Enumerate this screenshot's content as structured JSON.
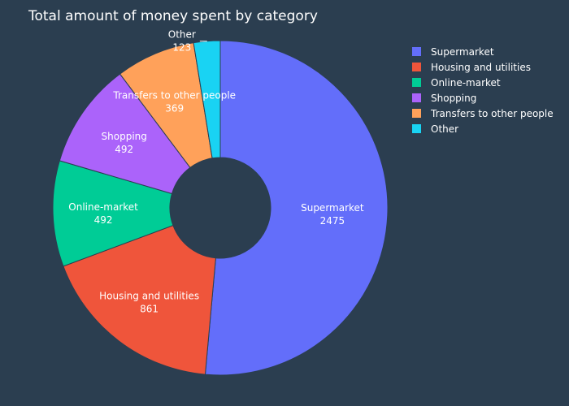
{
  "chart_data": {
    "type": "pie",
    "title": "Total amount of money spent by category",
    "hole": true,
    "legend_position": "top-right",
    "slices": [
      {
        "label": "Supermarket",
        "value": 2475,
        "color": "#636efa"
      },
      {
        "label": "Housing and utilities",
        "value": 861,
        "color": "#ef553b"
      },
      {
        "label": "Online-market",
        "value": 492,
        "color": "#00cc96"
      },
      {
        "label": "Shopping",
        "value": 492,
        "color": "#ab63fa"
      },
      {
        "label": "Transfers to other people",
        "value": 369,
        "color": "#ffa15a"
      },
      {
        "label": "Other",
        "value": 123,
        "color": "#19d3f3"
      }
    ]
  }
}
